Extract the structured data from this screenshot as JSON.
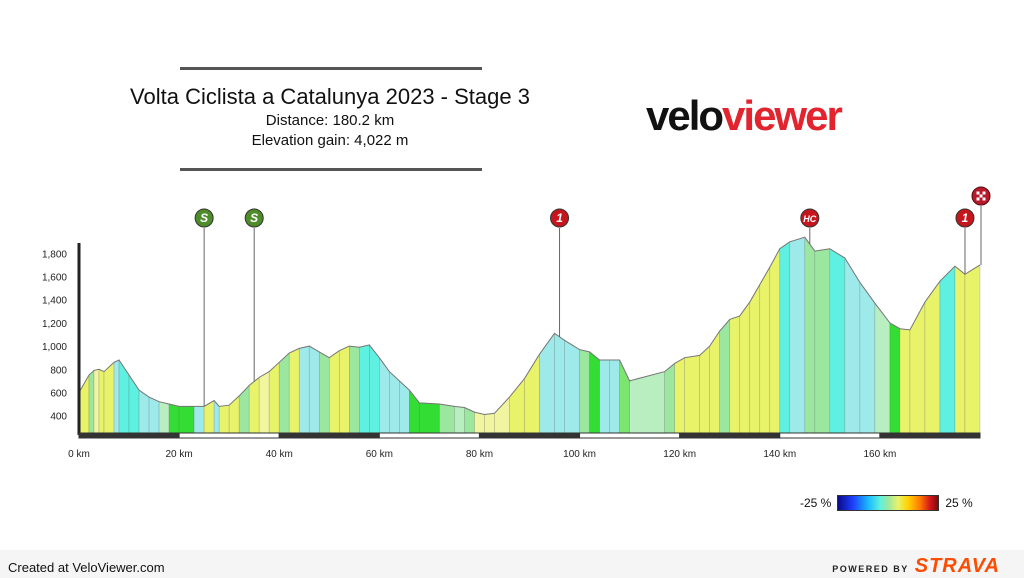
{
  "header": {
    "title": "Volta Ciclista a Catalunya 2023 - Stage 3",
    "distance": "Distance: 180.2 km",
    "elevation_gain": "Elevation gain: 4,022 m"
  },
  "logo": {
    "part1": "velo",
    "part2": "viewer"
  },
  "legend": {
    "min": "-25 %",
    "max": "25 %"
  },
  "footer": {
    "created": "Created at VeloViewer.com",
    "powered": "POWERED BY",
    "strava": "STRAVA"
  },
  "colors": {
    "brand_red": "#e2242e",
    "strava_orange": "#fc4c02",
    "sprint_green": "#4e8c2a",
    "climb_red": "#c4161c"
  },
  "chart_data": {
    "type": "area",
    "xlabel": "",
    "ylabel": "",
    "xlim": [
      0,
      180
    ],
    "ylim": [
      250,
      1950
    ],
    "x_ticks": [
      "0 km",
      "20 km",
      "40 km",
      "60 km",
      "80 km",
      "100 km",
      "120 km",
      "140 km",
      "160 km"
    ],
    "x_tick_values": [
      0,
      20,
      40,
      60,
      80,
      100,
      120,
      140,
      160
    ],
    "y_ticks": [
      "400",
      "600",
      "800",
      "1,000",
      "1,200",
      "1,400",
      "1,600",
      "1,800"
    ],
    "y_tick_values": [
      400,
      600,
      800,
      1000,
      1200,
      1400,
      1600,
      1800
    ],
    "gradient_legend": [
      "-25 %",
      "25 %"
    ],
    "profile": [
      {
        "km": 0,
        "elev": 600,
        "color": "#e8f36a"
      },
      {
        "km": 2,
        "elev": 750,
        "color": "#e8f36a"
      },
      {
        "km": 3,
        "elev": 790,
        "color": "#9be7a0"
      },
      {
        "km": 4,
        "elev": 800,
        "color": "#f2f5a0"
      },
      {
        "km": 5,
        "elev": 780,
        "color": "#e8f36a"
      },
      {
        "km": 7,
        "elev": 860,
        "color": "#e8f36a"
      },
      {
        "km": 8,
        "elev": 880,
        "color": "#9eeaea"
      },
      {
        "km": 10,
        "elev": 750,
        "color": "#5ef0e0"
      },
      {
        "km": 12,
        "elev": 620,
        "color": "#5ef0e0"
      },
      {
        "km": 14,
        "elev": 560,
        "color": "#9eeaea"
      },
      {
        "km": 16,
        "elev": 520,
        "color": "#9eeaea"
      },
      {
        "km": 18,
        "elev": 500,
        "color": "#b8eec0"
      },
      {
        "km": 20,
        "elev": 480,
        "color": "#33dd33"
      },
      {
        "km": 23,
        "elev": 480,
        "color": "#33dd33"
      },
      {
        "km": 25,
        "elev": 480,
        "color": "#9eeaea"
      },
      {
        "km": 27,
        "elev": 530,
        "color": "#e8f36a"
      },
      {
        "km": 28,
        "elev": 480,
        "color": "#9eeaea"
      },
      {
        "km": 30,
        "elev": 490,
        "color": "#e8f36a"
      },
      {
        "km": 32,
        "elev": 570,
        "color": "#e8f36a"
      },
      {
        "km": 34,
        "elev": 660,
        "color": "#9be7a0"
      },
      {
        "km": 36,
        "elev": 730,
        "color": "#e8f36a"
      },
      {
        "km": 38,
        "elev": 780,
        "color": "#f2f5a0"
      },
      {
        "km": 40,
        "elev": 860,
        "color": "#e8f36a"
      },
      {
        "km": 42,
        "elev": 940,
        "color": "#9be7a0"
      },
      {
        "km": 44,
        "elev": 980,
        "color": "#e8f36a"
      },
      {
        "km": 46,
        "elev": 1000,
        "color": "#9eeaea"
      },
      {
        "km": 48,
        "elev": 950,
        "color": "#9eeaea"
      },
      {
        "km": 50,
        "elev": 900,
        "color": "#9be7a0"
      },
      {
        "km": 52,
        "elev": 960,
        "color": "#e8f36a"
      },
      {
        "km": 54,
        "elev": 1000,
        "color": "#e8f36a"
      },
      {
        "km": 56,
        "elev": 990,
        "color": "#9be7a0"
      },
      {
        "km": 58,
        "elev": 1010,
        "color": "#5ef0e0"
      },
      {
        "km": 60,
        "elev": 900,
        "color": "#5ef0e0"
      },
      {
        "km": 62,
        "elev": 780,
        "color": "#9eeaea"
      },
      {
        "km": 64,
        "elev": 700,
        "color": "#9eeaea"
      },
      {
        "km": 66,
        "elev": 620,
        "color": "#9eeaea"
      },
      {
        "km": 68,
        "elev": 510,
        "color": "#33dd33"
      },
      {
        "km": 72,
        "elev": 500,
        "color": "#33dd33"
      },
      {
        "km": 75,
        "elev": 480,
        "color": "#9be7a0"
      },
      {
        "km": 77,
        "elev": 470,
        "color": "#b8eec0"
      },
      {
        "km": 79,
        "elev": 430,
        "color": "#9be7a0"
      },
      {
        "km": 81,
        "elev": 410,
        "color": "#f2f5a0"
      },
      {
        "km": 83,
        "elev": 420,
        "color": "#f2f5a0"
      },
      {
        "km": 86,
        "elev": 560,
        "color": "#f2f5a0"
      },
      {
        "km": 89,
        "elev": 720,
        "color": "#e8f36a"
      },
      {
        "km": 92,
        "elev": 930,
        "color": "#e8f36a"
      },
      {
        "km": 95,
        "elev": 1110,
        "color": "#9eeaea"
      },
      {
        "km": 97,
        "elev": 1050,
        "color": "#9eeaea"
      },
      {
        "km": 100,
        "elev": 970,
        "color": "#9eeaea"
      },
      {
        "km": 102,
        "elev": 950,
        "color": "#9be7a0"
      },
      {
        "km": 104,
        "elev": 880,
        "color": "#33dd33"
      },
      {
        "km": 106,
        "elev": 880,
        "color": "#9eeaea"
      },
      {
        "km": 108,
        "elev": 880,
        "color": "#9eeaea"
      },
      {
        "km": 110,
        "elev": 700,
        "color": "#7be570"
      },
      {
        "km": 117,
        "elev": 780,
        "color": "#b8eec0"
      },
      {
        "km": 119,
        "elev": 850,
        "color": "#9be7a0"
      },
      {
        "km": 121,
        "elev": 900,
        "color": "#e8f36a"
      },
      {
        "km": 124,
        "elev": 920,
        "color": "#e8f36a"
      },
      {
        "km": 126,
        "elev": 1000,
        "color": "#e8f36a"
      },
      {
        "km": 128,
        "elev": 1130,
        "color": "#e8f36a"
      },
      {
        "km": 130,
        "elev": 1230,
        "color": "#9be7a0"
      },
      {
        "km": 132,
        "elev": 1260,
        "color": "#e8f36a"
      },
      {
        "km": 134,
        "elev": 1380,
        "color": "#e8f36a"
      },
      {
        "km": 136,
        "elev": 1530,
        "color": "#e8f36a"
      },
      {
        "km": 138,
        "elev": 1680,
        "color": "#e8f36a"
      },
      {
        "km": 140,
        "elev": 1840,
        "color": "#e8f36a"
      },
      {
        "km": 142,
        "elev": 1900,
        "color": "#5ef0e0"
      },
      {
        "km": 145,
        "elev": 1940,
        "color": "#9eeaea"
      },
      {
        "km": 147,
        "elev": 1820,
        "color": "#9be7a0"
      },
      {
        "km": 150,
        "elev": 1840,
        "color": "#9be7a0"
      },
      {
        "km": 153,
        "elev": 1760,
        "color": "#5ef0e0"
      },
      {
        "km": 156,
        "elev": 1550,
        "color": "#9eeaea"
      },
      {
        "km": 159,
        "elev": 1370,
        "color": "#9eeaea"
      },
      {
        "km": 162,
        "elev": 1200,
        "color": "#b8eec0"
      },
      {
        "km": 164,
        "elev": 1150,
        "color": "#33dd33"
      },
      {
        "km": 166,
        "elev": 1140,
        "color": "#e8f36a"
      },
      {
        "km": 169,
        "elev": 1380,
        "color": "#e8f36a"
      },
      {
        "km": 172,
        "elev": 1560,
        "color": "#e8f36a"
      },
      {
        "km": 175,
        "elev": 1690,
        "color": "#5ef0e0"
      },
      {
        "km": 177,
        "elev": 1620,
        "color": "#e8f36a"
      },
      {
        "km": 180,
        "elev": 1700,
        "color": "#e8f36a"
      }
    ],
    "markers": [
      {
        "label": "S",
        "km": 25,
        "kind": "sprint"
      },
      {
        "label": "S",
        "km": 35,
        "kind": "sprint"
      },
      {
        "label": "1",
        "km": 96,
        "kind": "climb"
      },
      {
        "label": "HC",
        "km": 146,
        "kind": "climb"
      },
      {
        "label": "1",
        "km": 177,
        "kind": "climb"
      },
      {
        "label": "",
        "km": 180.2,
        "kind": "finish"
      }
    ]
  }
}
